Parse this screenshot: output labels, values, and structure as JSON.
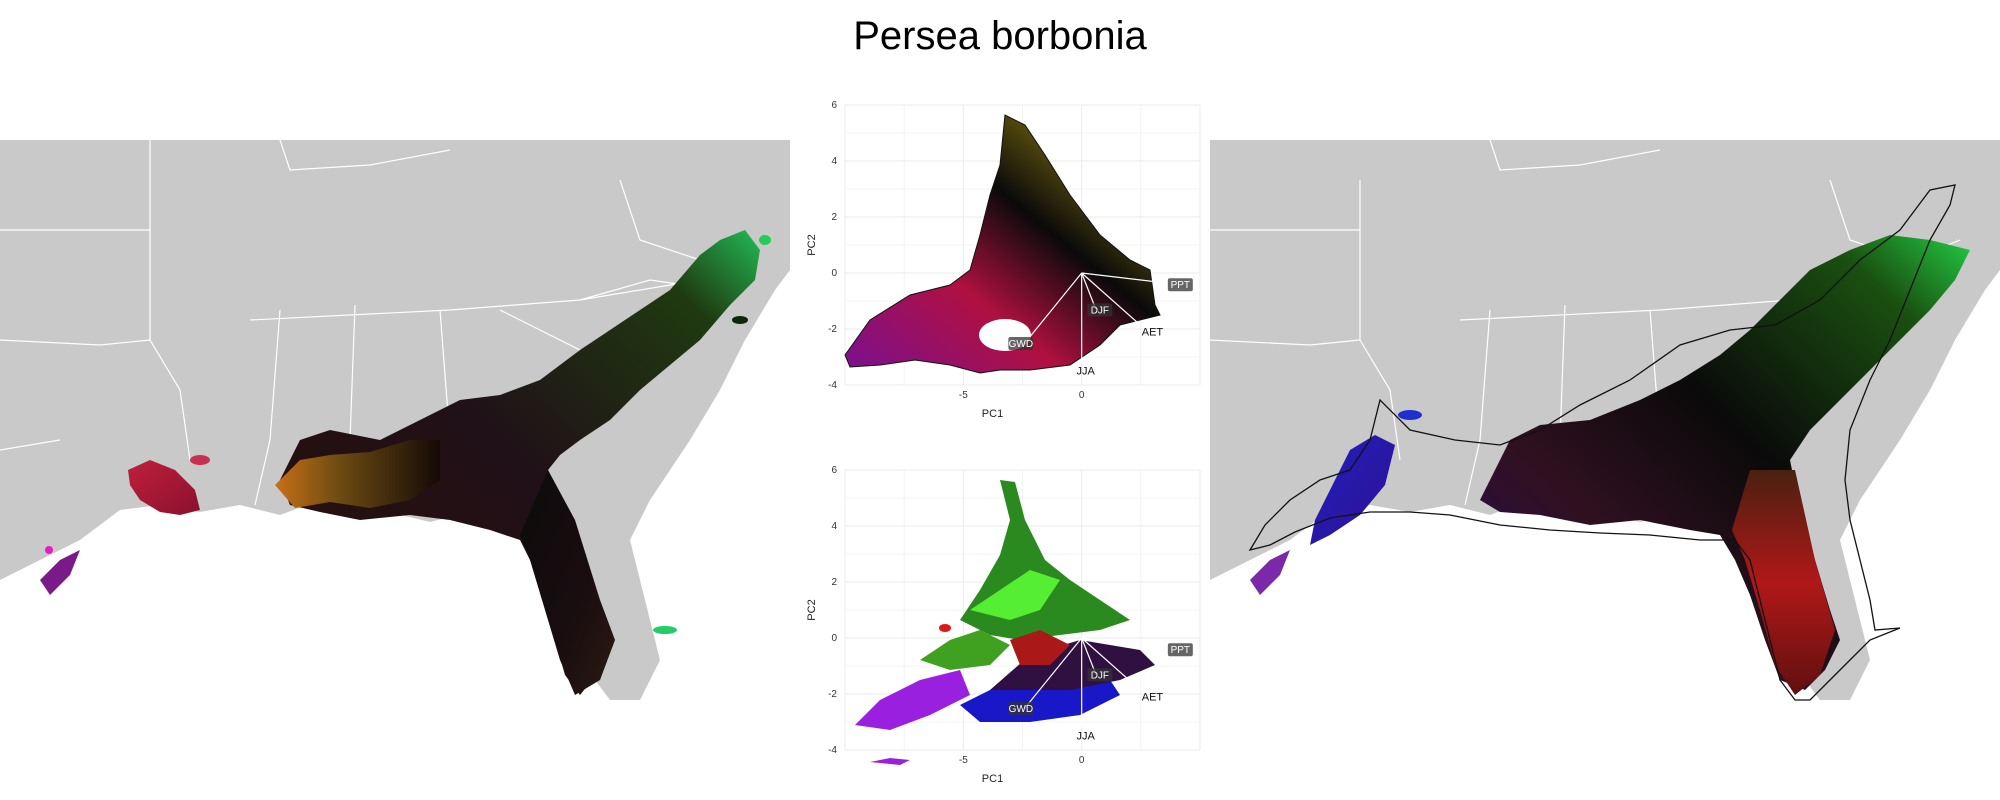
{
  "title": "Persea borbonia",
  "colors": {
    "land": "#c9c9c9",
    "state_border": "#ffffff",
    "water": "#ffffff",
    "grid": "#ebebeb",
    "hull": "#111111"
  },
  "pca": {
    "xlabel": "PC1",
    "ylabel": "PC2",
    "x_ticks": [
      "-5",
      "0"
    ],
    "y_ticks": [
      "6",
      "4",
      "2",
      "0",
      "-2",
      "-4"
    ],
    "vectors": [
      {
        "name": "PPT",
        "boxed": true
      },
      {
        "name": "DJF",
        "boxed": true
      },
      {
        "name": "AET",
        "boxed": false
      },
      {
        "name": "GWD",
        "boxed": true
      },
      {
        "name": "JJA",
        "boxed": false
      }
    ]
  },
  "chart_data": [
    {
      "type": "scatter",
      "panel": "top",
      "xlabel": "PC1",
      "ylabel": "PC2",
      "x_ticks": [
        -5,
        0
      ],
      "y_ticks": [
        -4,
        -2,
        0,
        2,
        4,
        6
      ],
      "xlim": [
        -10,
        5
      ],
      "ylim": [
        -4,
        6
      ],
      "grid": true,
      "vectors": [
        {
          "name": "PPT",
          "x": 4,
          "y": -0.4
        },
        {
          "name": "DJF",
          "x": 0.6,
          "y": -1.3
        },
        {
          "name": "AET",
          "x": 2.4,
          "y": -1.8
        },
        {
          "name": "GWD",
          "x": -2.4,
          "y": -2.5
        },
        {
          "name": "JJA",
          "x": 0,
          "y": -3.2
        }
      ]
    },
    {
      "type": "scatter",
      "panel": "bottom",
      "xlabel": "PC1",
      "ylabel": "PC2",
      "x_ticks": [
        -5,
        0
      ],
      "y_ticks": [
        -4,
        -2,
        0,
        2,
        4,
        6
      ],
      "xlim": [
        -10,
        5
      ],
      "ylim": [
        -4,
        6
      ],
      "grid": true,
      "vectors": [
        {
          "name": "PPT",
          "x": 4,
          "y": -0.4
        },
        {
          "name": "DJF",
          "x": 0.6,
          "y": -1.3
        },
        {
          "name": "AET",
          "x": 2.4,
          "y": -1.8
        },
        {
          "name": "GWD",
          "x": -2.4,
          "y": -2.5
        },
        {
          "name": "JJA",
          "x": 0,
          "y": -3.2
        }
      ]
    }
  ]
}
